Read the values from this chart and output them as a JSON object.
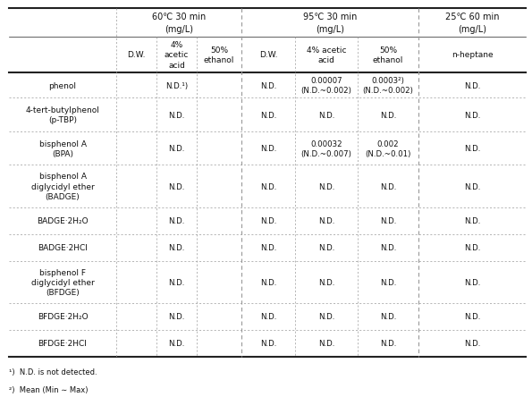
{
  "col_group_labels": [
    "60℃ 30 min\n(mg/L)",
    "95℃ 30 min\n(mg/L)",
    "25℃ 60 min\n(mg/L)"
  ],
  "col_group_spans": [
    3,
    3,
    1
  ],
  "subheaders": [
    "D.W.",
    "4%\nacetic\nacid",
    "50%\nethanol",
    "D.W.",
    "4% acetic\nacid",
    "50%\nethanol",
    "n-heptane"
  ],
  "rows": [
    {
      "name": "phenol",
      "cells": {
        "col60_dw": "",
        "col60_4a": "N.D.¹)",
        "col60_50e": "",
        "col95_dw": "N.D.",
        "col95_4a": "0.00007\n(N.D.~0.002)",
        "col95_50e": "0.0003²)\n(N.D.~0.002)",
        "col25": "N.D."
      }
    },
    {
      "name": "4-tert-butylphenol\n(p-TBP)",
      "cells": {
        "col60_dw": "",
        "col60_4a": "N.D.",
        "col60_50e": "",
        "col95_dw": "N.D.",
        "col95_4a": "N.D.",
        "col95_50e": "N.D.",
        "col25": "N.D."
      }
    },
    {
      "name": "bisphenol A\n(BPA)",
      "cells": {
        "col60_dw": "",
        "col60_4a": "N.D.",
        "col60_50e": "",
        "col95_dw": "N.D.",
        "col95_4a": "0.00032\n(N.D.~0.007)",
        "col95_50e": "0.002\n(N.D.~0.01)",
        "col25": "N.D."
      }
    },
    {
      "name": "bisphenol A\ndiglycidyl ether\n(BADGE)",
      "cells": {
        "col60_dw": "",
        "col60_4a": "N.D.",
        "col60_50e": "",
        "col95_dw": "N.D.",
        "col95_4a": "N.D.",
        "col95_50e": "N.D.",
        "col25": "N.D."
      }
    },
    {
      "name": "BADGE·2H₂O",
      "cells": {
        "col60_dw": "",
        "col60_4a": "N.D.",
        "col60_50e": "",
        "col95_dw": "N.D.",
        "col95_4a": "N.D.",
        "col95_50e": "N.D.",
        "col25": "N.D."
      }
    },
    {
      "name": "BADGE·2HCl",
      "cells": {
        "col60_dw": "",
        "col60_4a": "N.D.",
        "col60_50e": "",
        "col95_dw": "N.D.",
        "col95_4a": "N.D.",
        "col95_50e": "N.D.",
        "col25": "N.D."
      }
    },
    {
      "name": "bisphenol F\ndiglycidyl ether\n(BFDGE)",
      "cells": {
        "col60_dw": "",
        "col60_4a": "N.D.",
        "col60_50e": "",
        "col95_dw": "N.D.",
        "col95_4a": "N.D.",
        "col95_50e": "N.D.",
        "col25": "N.D."
      }
    },
    {
      "name": "BFDGE·2H₂O",
      "cells": {
        "col60_dw": "",
        "col60_4a": "N.D.",
        "col60_50e": "",
        "col95_dw": "N.D.",
        "col95_4a": "N.D.",
        "col95_50e": "N.D.",
        "col25": "N.D."
      }
    },
    {
      "name": "BFDGE·2HCl",
      "cells": {
        "col60_dw": "",
        "col60_4a": "N.D.",
        "col60_50e": "",
        "col95_dw": "N.D.",
        "col95_4a": "N.D.",
        "col95_50e": "N.D.",
        "col25": "N.D."
      }
    }
  ],
  "footnotes": [
    "¹)  N.D. is not detected.",
    "²)  Mean (Min ∼ Max)"
  ],
  "bg_color": "#ffffff",
  "text_color": "#111111",
  "line_color": "#222222",
  "dash_color": "#999999",
  "font_size": 6.5
}
